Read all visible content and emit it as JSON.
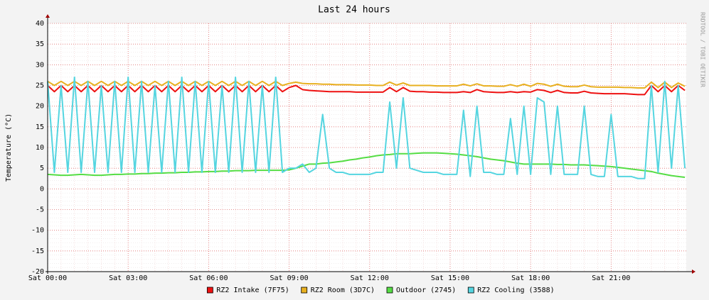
{
  "chart_data": {
    "type": "line",
    "title": "Last 24 hours",
    "y_label": "Temperature (°C)",
    "side_text": "RRDTOOL / TOBI OETIKER",
    "x": [
      0,
      0.25,
      0.5,
      0.75,
      1,
      1.25,
      1.5,
      1.75,
      2,
      2.25,
      2.5,
      2.75,
      3,
      3.25,
      3.5,
      3.75,
      4,
      4.25,
      4.5,
      4.75,
      5,
      5.25,
      5.5,
      5.75,
      6,
      6.25,
      6.5,
      6.75,
      7,
      7.25,
      7.5,
      7.75,
      8,
      8.25,
      8.5,
      8.75,
      9,
      9.25,
      9.5,
      9.75,
      10,
      10.25,
      10.5,
      10.75,
      11,
      11.25,
      11.5,
      11.75,
      12,
      12.25,
      12.5,
      12.75,
      13,
      13.25,
      13.5,
      13.75,
      14,
      14.25,
      14.5,
      14.75,
      15,
      15.25,
      15.5,
      15.75,
      16,
      16.25,
      16.5,
      16.75,
      17,
      17.25,
      17.5,
      17.75,
      18,
      18.25,
      18.5,
      18.75,
      19,
      19.25,
      19.5,
      19.75,
      20,
      20.25,
      20.5,
      20.75,
      21,
      21.25,
      21.5,
      21.75,
      22,
      22.25,
      22.5,
      22.75,
      23,
      23.25,
      23.5,
      23.75
    ],
    "xlim": [
      0,
      23.8
    ],
    "xticks": [
      {
        "value": 0,
        "label": "Sat 00:00"
      },
      {
        "value": 3,
        "label": "Sat 03:00"
      },
      {
        "value": 6,
        "label": "Sat 06:00"
      },
      {
        "value": 9,
        "label": "Sat 09:00"
      },
      {
        "value": 12,
        "label": "Sat 12:00"
      },
      {
        "value": 15,
        "label": "Sat 15:00"
      },
      {
        "value": 18,
        "label": "Sat 18:00"
      },
      {
        "value": 21,
        "label": "Sat 21:00"
      }
    ],
    "ylim": [
      -20,
      40
    ],
    "yticks": [
      -20,
      -15,
      -10,
      -5,
      0,
      5,
      10,
      15,
      20,
      25,
      30,
      35,
      40
    ],
    "grid": true,
    "legend": "bottom",
    "series": [
      {
        "name": "RZ2 Intake (7F75)",
        "color": "#ee1111",
        "values": [
          25,
          23.5,
          25,
          23.5,
          25,
          23.5,
          25,
          23.5,
          25,
          23.5,
          25,
          23.5,
          25,
          23.5,
          25,
          23.5,
          25,
          23.5,
          25,
          23.5,
          25,
          23.5,
          25,
          23.5,
          25,
          23.5,
          25,
          23.5,
          25,
          23.5,
          25,
          23.5,
          25,
          23.5,
          25,
          23.5,
          24.5,
          25,
          24,
          23.8,
          23.7,
          23.6,
          23.5,
          23.5,
          23.5,
          23.5,
          23.4,
          23.4,
          23.4,
          23.4,
          23.4,
          24.5,
          23.5,
          24.5,
          23.6,
          23.5,
          23.5,
          23.4,
          23.4,
          23.3,
          23.3,
          23.3,
          23.5,
          23.3,
          24,
          23.5,
          23.4,
          23.3,
          23.3,
          23.5,
          23.3,
          23.5,
          23.4,
          24,
          23.8,
          23.3,
          23.8,
          23.3,
          23.2,
          23.2,
          23.6,
          23.2,
          23.1,
          23,
          23,
          23,
          23,
          22.9,
          22.8,
          22.8,
          25,
          23.5,
          25,
          23.5,
          25,
          23.8
        ]
      },
      {
        "name": "RZ2 Room (3D7C)",
        "color": "#e8b020",
        "values": [
          26,
          25,
          26,
          25,
          26,
          25,
          26,
          25,
          26,
          25,
          26,
          25,
          26,
          25,
          26,
          25,
          26,
          25,
          26,
          25,
          26,
          25,
          26,
          25,
          26,
          25,
          26,
          25,
          26,
          25,
          26,
          25,
          26,
          25,
          26,
          25,
          25.5,
          25.8,
          25.5,
          25.4,
          25.4,
          25.3,
          25.3,
          25.2,
          25.2,
          25.2,
          25.1,
          25.1,
          25.1,
          25,
          25,
          25.8,
          25.1,
          25.6,
          25,
          25,
          25,
          25,
          24.9,
          24.9,
          24.9,
          24.9,
          25.3,
          24.9,
          25.4,
          24.9,
          24.9,
          24.8,
          24.8,
          25.2,
          24.8,
          25.3,
          24.8,
          25.5,
          25.3,
          24.8,
          25.3,
          24.8,
          24.7,
          24.7,
          25.1,
          24.7,
          24.6,
          24.6,
          24.6,
          24.6,
          24.5,
          24.5,
          24.4,
          24.4,
          25.8,
          24.5,
          25.8,
          24.5,
          25.6,
          24.8
        ]
      },
      {
        "name": "Outdoor (2745)",
        "color": "#55dd44",
        "values": [
          3.5,
          3.4,
          3.3,
          3.3,
          3.4,
          3.5,
          3.4,
          3.3,
          3.3,
          3.4,
          3.5,
          3.5,
          3.6,
          3.6,
          3.7,
          3.7,
          3.8,
          3.8,
          3.9,
          3.9,
          4,
          4,
          4.1,
          4.1,
          4.2,
          4.2,
          4.3,
          4.3,
          4.4,
          4.4,
          4.4,
          4.5,
          4.5,
          4.5,
          4.5,
          4.5,
          4.6,
          5,
          5.5,
          6,
          6,
          6.2,
          6.3,
          6.5,
          6.7,
          7,
          7.2,
          7.5,
          7.7,
          8,
          8.2,
          8.3,
          8.5,
          8.5,
          8.5,
          8.6,
          8.7,
          8.7,
          8.7,
          8.6,
          8.5,
          8.4,
          8.2,
          8,
          7.8,
          7.5,
          7.2,
          7,
          6.8,
          6.5,
          6.2,
          6,
          6,
          6,
          6,
          6,
          5.9,
          5.9,
          5.8,
          5.8,
          5.8,
          5.7,
          5.6,
          5.5,
          5.4,
          5.2,
          5,
          4.8,
          4.6,
          4.4,
          4.2,
          3.8,
          3.5,
          3.2,
          3,
          2.8
        ]
      },
      {
        "name": "RZ2 Cooling (3588)",
        "color": "#55d5e0",
        "values": [
          26,
          4,
          25,
          4,
          27,
          4,
          26,
          4,
          25,
          4,
          26,
          4,
          27,
          4,
          26,
          4,
          25,
          4,
          26,
          4,
          27,
          4,
          26,
          4,
          26,
          4,
          25,
          4,
          27,
          4,
          26,
          4,
          25,
          4,
          27,
          4,
          5,
          5,
          6,
          4,
          5,
          18,
          5,
          4,
          4,
          3.5,
          3.5,
          3.5,
          3.5,
          4,
          4,
          21,
          5,
          22,
          5,
          4.5,
          4,
          4,
          4,
          3.5,
          3.5,
          3.5,
          19,
          3,
          20,
          4,
          4,
          3.5,
          3.5,
          17,
          3.5,
          20,
          3.5,
          22,
          21,
          3.5,
          20,
          3.5,
          3.5,
          3.5,
          20,
          3.5,
          3,
          3,
          18,
          3,
          3,
          3,
          2.5,
          2.5,
          25,
          4,
          26,
          5,
          25,
          5
        ]
      }
    ]
  }
}
